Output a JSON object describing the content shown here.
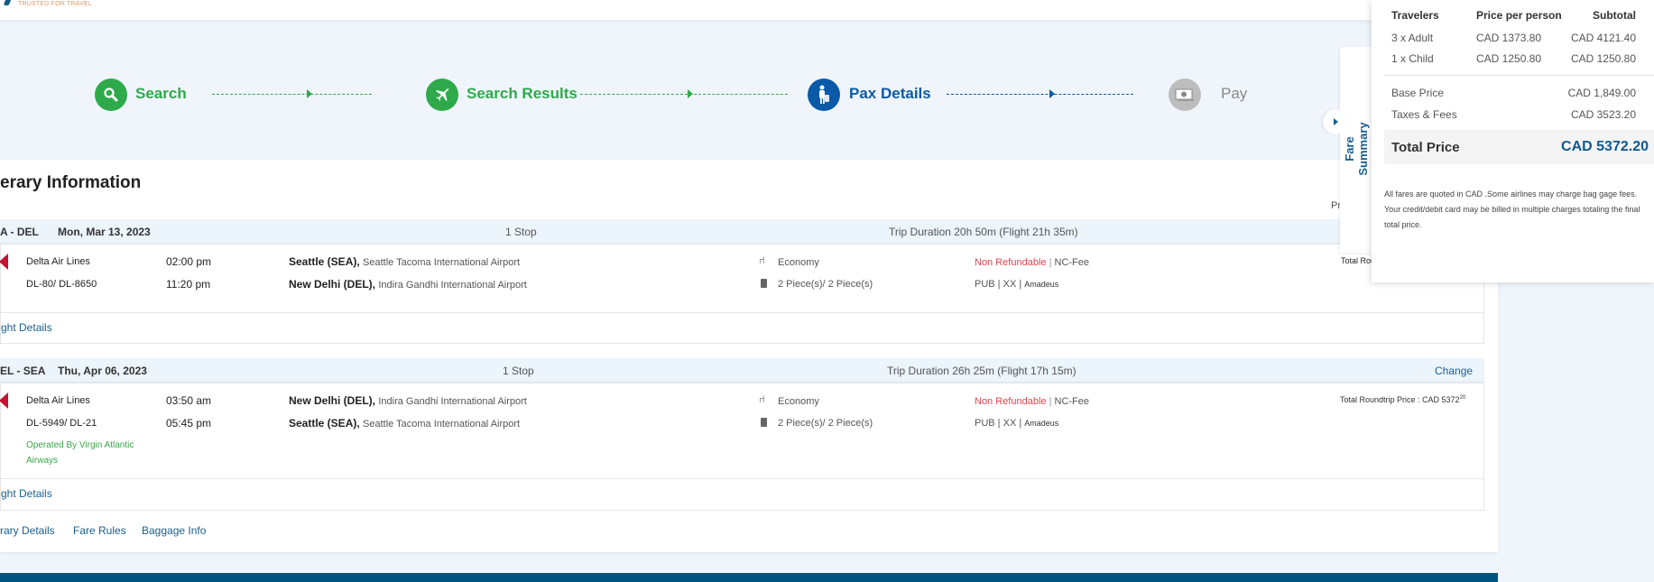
{
  "header": {
    "tagline": "TRUSTED FOR TRAVEL"
  },
  "colors": {
    "done": "#2eaa4a",
    "active": "#0a5aa8",
    "pending": "#bdbdbd",
    "total": "#0f5a8c",
    "refund": "#e0434f",
    "operated": "#3aa548",
    "footer": "#00557f"
  },
  "steps": [
    {
      "label": "Search",
      "icon": "search-icon",
      "state": "done"
    },
    {
      "label": "Search Results",
      "icon": "plane-icon",
      "state": "done"
    },
    {
      "label": "Pax Details",
      "icon": "traveler-icon",
      "state": "active"
    },
    {
      "label": "Pay",
      "icon": "money-icon",
      "state": "pending"
    }
  ],
  "itinerary": {
    "title": "erary Information",
    "price_per_label": "Price per",
    "segments": [
      {
        "route": "A - DEL",
        "date": "Mon, Mar 13, 2023",
        "stops": "1 Stop",
        "duration": "Trip Duration 20h 50m (Flight 21h 35m)",
        "change": "",
        "airline": "Delta Air Lines",
        "flight_no": "DL-80/ DL-8650",
        "operated": "",
        "dep_time": "02:00 pm",
        "arr_time": "11:20 pm",
        "dep_city": "Seattle (SEA),",
        "dep_airport": "Seattle Tacoma International Airport",
        "arr_city": "New Delhi (DEL),",
        "arr_airport": "Indira Gandhi International Airport",
        "cabin": "Economy",
        "baggage": "2 Piece(s)/ 2 Piece(s)",
        "refund": "Non Refundable",
        "fee": "NC-Fee",
        "fare_type": "PUB",
        "code": "XX",
        "gds": "Amadeus",
        "total": "Total Round",
        "total_sup": "",
        "details_link": "ght Details"
      },
      {
        "route": "EL - SEA",
        "date": "Thu, Apr 06, 2023",
        "stops": "1 Stop",
        "duration": "Trip Duration 26h 25m (Flight 17h 15m)",
        "change": "Change",
        "airline": "Delta Air Lines",
        "flight_no": "DL-5949/ DL-21",
        "operated": "Operated By Virgin Atlantic Airways",
        "dep_time": "03:50 am",
        "arr_time": "05:45 pm",
        "dep_city": "New Delhi (DEL),",
        "dep_airport": "Indira Gandhi International Airport",
        "arr_city": "Seattle (SEA),",
        "arr_airport": "Seattle Tacoma International Airport",
        "cabin": "Economy",
        "baggage": "2 Piece(s)/ 2 Piece(s)",
        "refund": "Non Refundable",
        "fee": "NC-Fee",
        "fare_type": "PUB",
        "code": "XX",
        "gds": "Amadeus",
        "total": "Total Roundtrip Price : CAD 5372",
        "total_sup": "20",
        "details_link": "ght Details"
      }
    ],
    "bottom_links": [
      "rary Details",
      "Fare Rules",
      "Baggage Info"
    ]
  },
  "fare_summary": {
    "tab_label": "Fare Summary",
    "headers": [
      "Travelers",
      "Price per person",
      "Subtotal"
    ],
    "rows": [
      [
        "3 x Adult",
        "CAD 1373.80",
        "CAD 4121.40"
      ],
      [
        "1 x Child",
        "CAD 1250.80",
        "CAD 1250.80"
      ]
    ],
    "base_label": "Base Price",
    "base_value": "CAD 1,849.00",
    "taxes_label": "Taxes & Fees",
    "taxes_value": "CAD 3523.20",
    "total_label": "Total Price",
    "total_value": "CAD 5372.20",
    "note": "All fares are quoted in CAD .Some airlines may charge bag gage fees. Your credit/debit card may be billed in multiple charges totaling the final total price."
  }
}
